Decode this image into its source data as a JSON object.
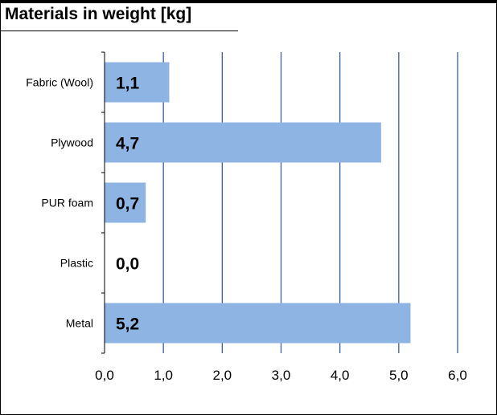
{
  "chart_data": {
    "type": "bar",
    "orientation": "horizontal",
    "title": "Materials in weight [kg]",
    "categories": [
      "Fabric (Wool)",
      "Plywood",
      "PUR foam",
      "Plastic",
      "Metal"
    ],
    "values": [
      1.1,
      4.7,
      0.7,
      0.0,
      5.2
    ],
    "data_labels": [
      "1,1",
      "4,7",
      "0,7",
      "0,0",
      "5,2"
    ],
    "xlim": [
      0,
      6
    ],
    "x_ticks": [
      0,
      1,
      2,
      3,
      4,
      5,
      6
    ],
    "x_tick_labels": [
      "0,0",
      "1,0",
      "2,0",
      "3,0",
      "4,0",
      "5,0",
      "6,0"
    ],
    "grid": true,
    "bar_color": "#8eb4e3",
    "grid_color": "#3a5fa0"
  }
}
